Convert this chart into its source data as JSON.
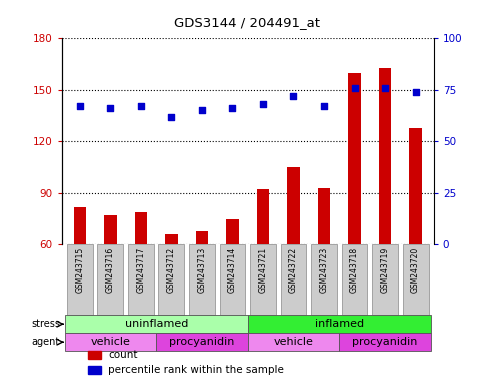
{
  "title": "GDS3144 / 204491_at",
  "samples": [
    "GSM243715",
    "GSM243716",
    "GSM243717",
    "GSM243712",
    "GSM243713",
    "GSM243714",
    "GSM243721",
    "GSM243722",
    "GSM243723",
    "GSM243718",
    "GSM243719",
    "GSM243720"
  ],
  "counts": [
    82,
    77,
    79,
    66,
    68,
    75,
    92,
    105,
    93,
    160,
    163,
    128
  ],
  "percentile_ranks": [
    67,
    66,
    67,
    62,
    65,
    66,
    68,
    72,
    67,
    76,
    76,
    74
  ],
  "ylim_left": [
    60,
    180
  ],
  "ylim_right": [
    0,
    100
  ],
  "yticks_left": [
    60,
    90,
    120,
    150,
    180
  ],
  "yticks_right": [
    0,
    25,
    50,
    75,
    100
  ],
  "bar_color": "#cc0000",
  "dot_color": "#0000cc",
  "stress_groups": [
    {
      "label": "uninflamed",
      "start": 0,
      "end": 6,
      "color": "#aaffaa"
    },
    {
      "label": "inflamed",
      "start": 6,
      "end": 12,
      "color": "#33ee33"
    }
  ],
  "agent_groups": [
    {
      "label": "vehicle",
      "start": 0,
      "end": 3,
      "color": "#ee88ee"
    },
    {
      "label": "procyanidin",
      "start": 3,
      "end": 6,
      "color": "#dd44dd"
    },
    {
      "label": "vehicle",
      "start": 6,
      "end": 9,
      "color": "#ee88ee"
    },
    {
      "label": "procyanidin",
      "start": 9,
      "end": 12,
      "color": "#dd44dd"
    }
  ],
  "legend_items": [
    {
      "label": "count",
      "color": "#cc0000"
    },
    {
      "label": "percentile rank within the sample",
      "color": "#0000cc"
    }
  ],
  "tick_label_bg": "#cccccc",
  "bar_width": 0.4
}
